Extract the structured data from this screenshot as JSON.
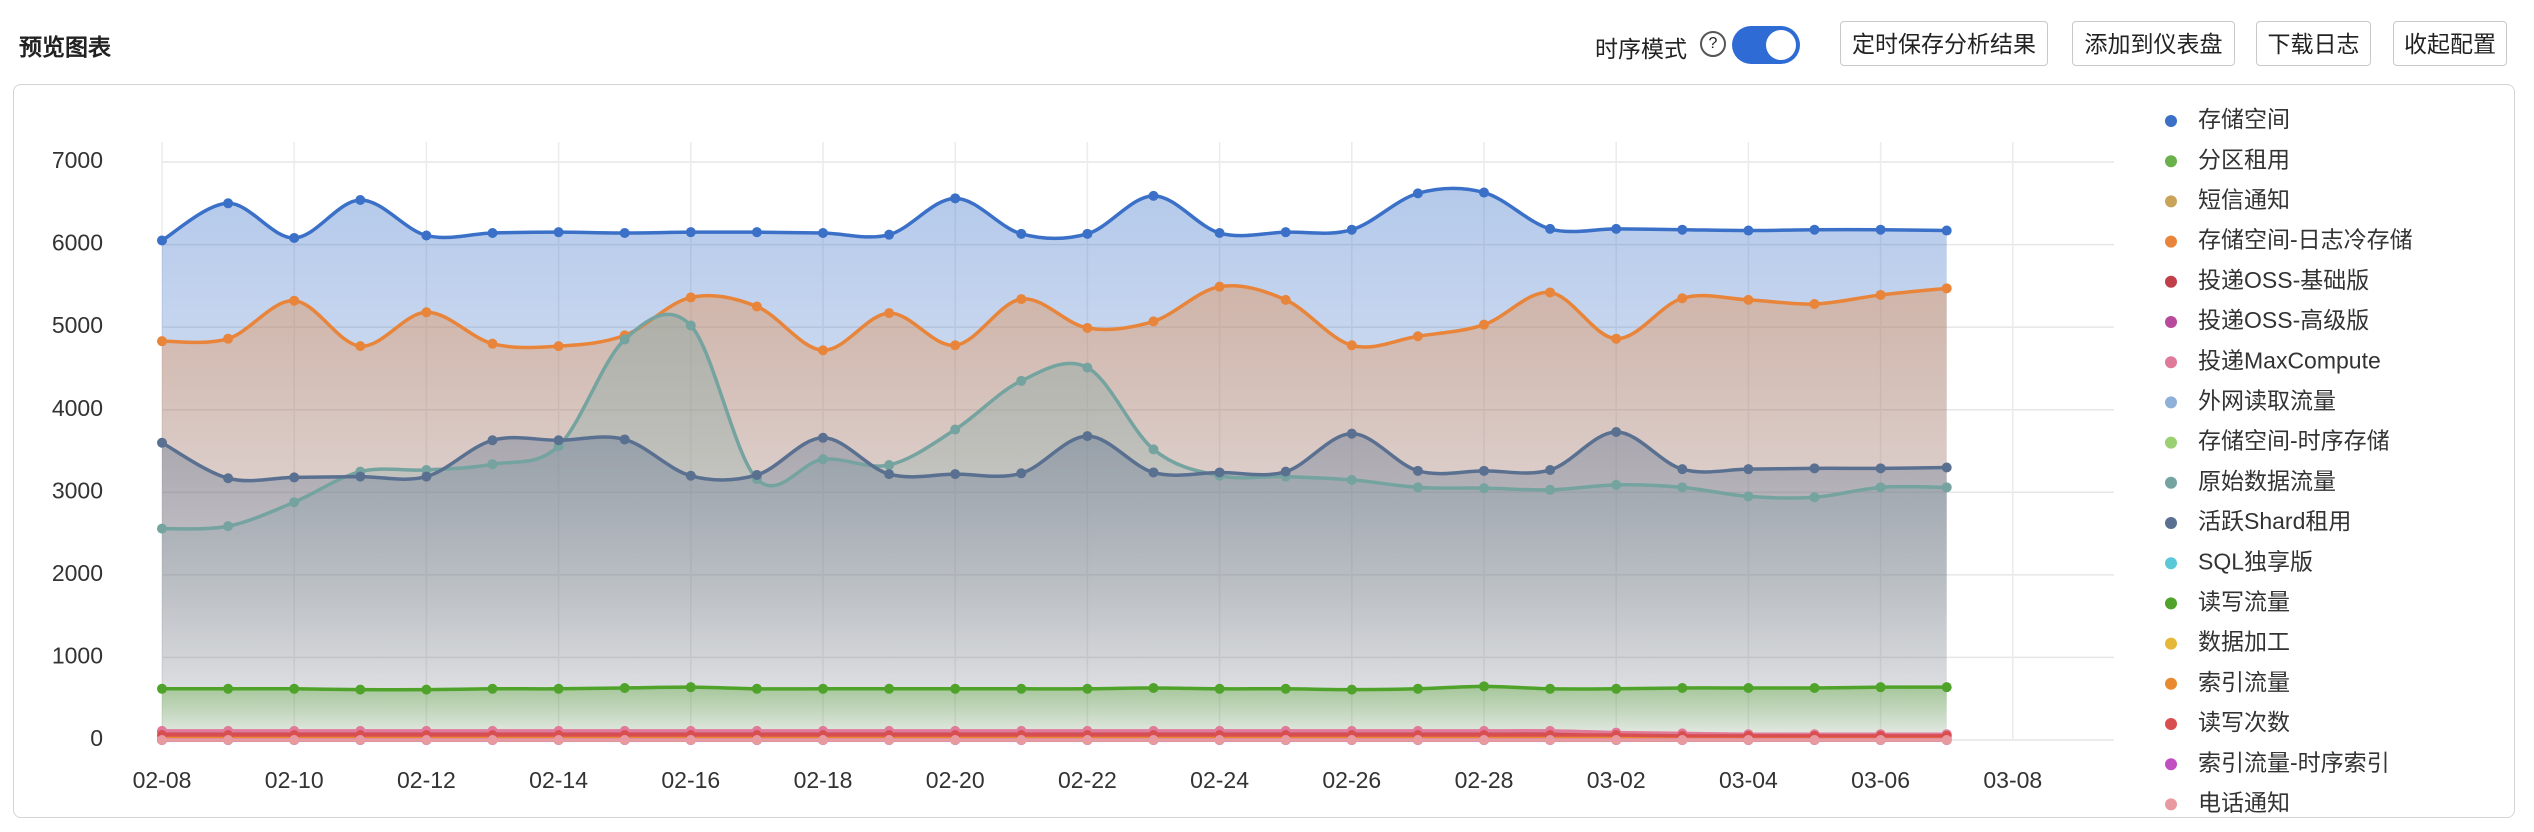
{
  "header": {
    "title": "预览图表",
    "toggle_label": "时序模式",
    "help": "?",
    "buttons": [
      "定时保存分析结果",
      "添加到仪表盘",
      "下载日志",
      "收起配置"
    ]
  },
  "chart_data": {
    "type": "line",
    "area": true,
    "smooth": true,
    "grid": true,
    "legend": "right",
    "categories": [
      "02-08",
      null,
      "02-10",
      null,
      "02-12",
      null,
      "02-14",
      null,
      "02-16",
      null,
      "02-18",
      null,
      "02-20",
      null,
      "02-22",
      null,
      "02-24",
      null,
      "02-26",
      null,
      "02-28",
      null,
      "03-02",
      null,
      "03-04",
      null,
      "03-06",
      null,
      "03-08"
    ],
    "ylim": [
      0,
      7000
    ],
    "yticks": [
      0,
      1000,
      2000,
      3000,
      4000,
      5000,
      6000,
      7000
    ],
    "series": [
      {
        "name": "存储空间",
        "color": "#3a70c7",
        "values": [
          6050,
          6500,
          6080,
          6540,
          6110,
          6140,
          6150,
          6140,
          6150,
          6150,
          6140,
          6120,
          6560,
          6130,
          6130,
          6590,
          6140,
          6150,
          6180,
          6620,
          6630,
          6190,
          6190,
          6180,
          6170,
          6180,
          6180,
          6170,
          null
        ]
      },
      {
        "name": "分区租用",
        "color": "#6ab04c",
        "values": [
          0,
          0,
          0,
          0,
          0,
          0,
          0,
          0,
          0,
          0,
          0,
          0,
          0,
          0,
          0,
          0,
          0,
          0,
          0,
          0,
          0,
          0,
          0,
          0,
          0,
          0,
          0,
          0,
          null
        ]
      },
      {
        "name": "短信通知",
        "color": "#c9a35a",
        "values": [
          0,
          0,
          0,
          0,
          0,
          0,
          0,
          0,
          0,
          0,
          0,
          0,
          0,
          0,
          0,
          0,
          0,
          0,
          0,
          0,
          0,
          0,
          0,
          0,
          0,
          0,
          0,
          0,
          null
        ]
      },
      {
        "name": "存储空间-日志冷存储",
        "color": "#e8853a",
        "values": [
          4830,
          4860,
          5320,
          4770,
          5180,
          4800,
          4770,
          4900,
          5360,
          5250,
          4720,
          5170,
          4780,
          5340,
          4990,
          5070,
          5490,
          5330,
          4780,
          4890,
          5030,
          5420,
          4860,
          5350,
          5330,
          5280,
          5390,
          5470,
          null
        ]
      },
      {
        "name": "投递OSS-基础版",
        "color": "#c0404a",
        "values": [
          100,
          100,
          100,
          100,
          100,
          100,
          100,
          100,
          100,
          100,
          100,
          100,
          100,
          100,
          100,
          100,
          100,
          100,
          100,
          100,
          100,
          100,
          80,
          70,
          60,
          60,
          60,
          60,
          null
        ]
      },
      {
        "name": "投递OSS-高级版",
        "color": "#b84a9b",
        "values": [
          0,
          0,
          0,
          0,
          0,
          0,
          0,
          0,
          0,
          0,
          0,
          0,
          0,
          0,
          0,
          0,
          0,
          0,
          0,
          0,
          0,
          0,
          0,
          0,
          0,
          0,
          0,
          0,
          null
        ]
      },
      {
        "name": "投递MaxCompute",
        "color": "#e07a9a",
        "values": [
          110,
          110,
          110,
          110,
          110,
          110,
          110,
          110,
          110,
          110,
          110,
          110,
          110,
          110,
          110,
          110,
          110,
          110,
          110,
          110,
          110,
          110,
          90,
          80,
          70,
          70,
          70,
          70,
          null
        ]
      },
      {
        "name": "外网读取流量",
        "color": "#8fb0d8",
        "values": [
          0,
          0,
          0,
          0,
          0,
          0,
          0,
          0,
          0,
          0,
          0,
          0,
          0,
          0,
          0,
          0,
          0,
          0,
          0,
          0,
          0,
          0,
          0,
          0,
          0,
          0,
          0,
          0,
          null
        ]
      },
      {
        "name": "存储空间-时序存储",
        "color": "#9bd072",
        "values": [
          0,
          0,
          0,
          0,
          0,
          0,
          0,
          0,
          0,
          0,
          0,
          0,
          0,
          0,
          0,
          0,
          0,
          0,
          0,
          0,
          0,
          0,
          0,
          0,
          0,
          0,
          0,
          0,
          null
        ]
      },
      {
        "name": "原始数据流量",
        "color": "#75a3a0",
        "values": [
          2560,
          2590,
          2880,
          3250,
          3270,
          3340,
          3560,
          4850,
          5020,
          3160,
          3400,
          3330,
          3760,
          4350,
          4510,
          3520,
          3200,
          3190,
          3150,
          3060,
          3050,
          3030,
          3090,
          3060,
          2950,
          2940,
          3060,
          3060,
          null
        ]
      },
      {
        "name": "活跃Shard租用",
        "color": "#5a7090",
        "values": [
          3600,
          3170,
          3180,
          3190,
          3190,
          3630,
          3630,
          3640,
          3200,
          3210,
          3660,
          3220,
          3220,
          3230,
          3680,
          3240,
          3240,
          3250,
          3710,
          3260,
          3260,
          3270,
          3730,
          3280,
          3280,
          3290,
          3290,
          3300,
          null
        ]
      },
      {
        "name": "SQL独享版",
        "color": "#5bc8d8",
        "values": [
          0,
          0,
          0,
          0,
          0,
          0,
          0,
          0,
          0,
          0,
          0,
          0,
          0,
          0,
          0,
          0,
          0,
          0,
          0,
          0,
          0,
          0,
          0,
          0,
          0,
          0,
          0,
          0,
          null
        ]
      },
      {
        "name": "读写流量",
        "color": "#4fa32a",
        "values": [
          620,
          620,
          620,
          610,
          610,
          620,
          620,
          630,
          640,
          620,
          620,
          620,
          620,
          620,
          620,
          630,
          620,
          620,
          610,
          620,
          650,
          620,
          620,
          630,
          630,
          630,
          640,
          640,
          null
        ]
      },
      {
        "name": "数据加工",
        "color": "#e6b83a",
        "values": [
          0,
          0,
          0,
          0,
          0,
          0,
          0,
          0,
          0,
          0,
          0,
          0,
          0,
          0,
          0,
          0,
          0,
          0,
          0,
          0,
          0,
          0,
          0,
          0,
          0,
          0,
          0,
          0,
          null
        ]
      },
      {
        "name": "索引流量",
        "color": "#e88a30",
        "values": [
          20,
          20,
          20,
          20,
          20,
          20,
          20,
          20,
          20,
          20,
          20,
          20,
          20,
          20,
          20,
          20,
          20,
          20,
          20,
          20,
          20,
          20,
          20,
          20,
          20,
          20,
          20,
          20,
          null
        ]
      },
      {
        "name": "读写次数",
        "color": "#d94f4f",
        "values": [
          60,
          60,
          60,
          60,
          60,
          60,
          60,
          60,
          60,
          60,
          60,
          60,
          60,
          60,
          60,
          60,
          60,
          60,
          60,
          60,
          60,
          60,
          60,
          50,
          50,
          50,
          50,
          50,
          null
        ]
      },
      {
        "name": "索引流量-时序索引",
        "color": "#c050c0",
        "values": [
          0,
          0,
          0,
          0,
          0,
          0,
          0,
          0,
          0,
          0,
          0,
          0,
          0,
          0,
          0,
          0,
          0,
          0,
          0,
          0,
          0,
          0,
          0,
          0,
          0,
          0,
          0,
          0,
          null
        ]
      },
      {
        "name": "电话通知",
        "color": "#e89aa0",
        "values": [
          0,
          0,
          0,
          0,
          0,
          0,
          0,
          0,
          0,
          0,
          0,
          0,
          0,
          0,
          0,
          0,
          0,
          0,
          0,
          0,
          0,
          0,
          0,
          0,
          0,
          0,
          0,
          0,
          null
        ]
      }
    ]
  }
}
